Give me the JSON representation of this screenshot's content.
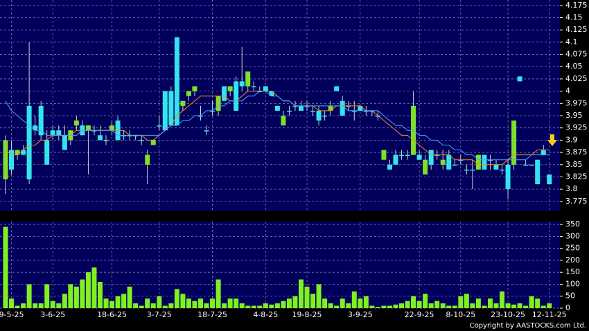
{
  "chart_data": [
    {
      "type": "candlestick",
      "categories": [
        null,
        "9-5-25",
        null,
        null,
        null,
        null,
        null,
        null,
        "3-6-25",
        null,
        null,
        null,
        null,
        null,
        null,
        null,
        null,
        null,
        "18-6-25",
        null,
        null,
        null,
        null,
        null,
        null,
        null,
        "3-7-25",
        null,
        null,
        null,
        null,
        null,
        null,
        null,
        null,
        "18-7-25",
        null,
        null,
        null,
        null,
        null,
        null,
        null,
        null,
        "4-8-25",
        null,
        null,
        null,
        null,
        null,
        null,
        "19-8-25",
        null,
        null,
        null,
        null,
        null,
        null,
        null,
        null,
        "3-9-25",
        null,
        null,
        null,
        null,
        null,
        null,
        null,
        null,
        null,
        "22-9-25",
        null,
        null,
        null,
        null,
        null,
        null,
        "8-10-25",
        null,
        null,
        null,
        null,
        null,
        null,
        null,
        "23-10-25",
        null,
        null,
        null,
        null,
        null,
        null,
        "12-11-25"
      ],
      "open": [
        3.82,
        3.88,
        3.87,
        3.88,
        3.97,
        3.93,
        3.97,
        3.9,
        3.92,
        3.92,
        3.91,
        3.9,
        3.93,
        3.93,
        3.92,
        3.92,
        3.91,
        3.9,
        3.92,
        3.94,
        3.91,
        3.91,
        3.91,
        3.9,
        3.85,
        3.89,
        3.93,
        4.0,
        4.0,
        4.11,
        3.97,
        3.99,
        4.0,
        3.95,
        3.92,
        3.96,
        3.96,
        4.01,
        4.0,
        4.02,
        4.02,
        4.01,
        4.01,
        4.0,
        4.01,
        4.0,
        3.97,
        3.93,
        3.96,
        3.97,
        3.97,
        3.97,
        3.96,
        3.96,
        3.95,
        3.96,
        4.01,
        3.98,
        3.97,
        3.96,
        3.97,
        3.96,
        3.96,
        3.95,
        3.86,
        3.85,
        3.87,
        3.87,
        3.87,
        3.87,
        3.87,
        3.83,
        3.88,
        3.87,
        3.85,
        3.87,
        3.85,
        3.86,
        3.84,
        3.84,
        3.84,
        3.87,
        3.86,
        3.85,
        3.84,
        3.85,
        3.85,
        4.03,
        3.85,
        3.85,
        3.86,
        3.88,
        3.83
      ],
      "high": [
        3.91,
        3.9,
        3.88,
        3.89,
        4.1,
        3.95,
        3.98,
        3.92,
        3.93,
        3.93,
        3.93,
        3.92,
        3.95,
        3.94,
        3.93,
        3.93,
        3.93,
        3.91,
        3.94,
        3.95,
        3.92,
        3.92,
        3.91,
        3.91,
        3.88,
        3.9,
        3.95,
        4.0,
        4.01,
        4.11,
        3.98,
        4.0,
        4.01,
        3.97,
        3.93,
        3.98,
        3.99,
        4.01,
        4.01,
        4.03,
        4.09,
        4.04,
        4.02,
        4.01,
        4.01,
        4.0,
        3.97,
        3.96,
        3.97,
        3.98,
        3.98,
        3.98,
        3.97,
        3.97,
        3.96,
        3.98,
        4.01,
        3.99,
        3.98,
        3.98,
        3.97,
        3.97,
        3.96,
        3.96,
        3.88,
        3.86,
        3.88,
        3.88,
        3.88,
        4.0,
        3.88,
        3.87,
        3.88,
        3.88,
        3.88,
        3.88,
        3.86,
        3.87,
        3.85,
        3.86,
        3.87,
        3.87,
        3.87,
        3.86,
        3.85,
        3.86,
        3.94,
        4.03,
        3.86,
        3.85,
        3.86,
        3.89,
        3.83
      ],
      "low": [
        3.79,
        3.83,
        3.86,
        3.87,
        3.81,
        3.91,
        3.9,
        3.85,
        3.9,
        3.9,
        3.88,
        3.89,
        3.92,
        3.91,
        3.83,
        3.91,
        3.9,
        3.89,
        3.91,
        3.9,
        3.9,
        3.9,
        3.9,
        3.89,
        3.81,
        3.89,
        3.92,
        3.92,
        3.93,
        3.93,
        3.96,
        3.98,
        3.99,
        3.94,
        3.91,
        3.95,
        3.95,
        3.98,
        3.99,
        3.96,
        4.0,
        4.0,
        4.0,
        4.0,
        4.0,
        3.99,
        3.96,
        3.93,
        3.95,
        3.96,
        3.96,
        3.96,
        3.95,
        3.93,
        3.94,
        3.95,
        4.0,
        3.95,
        3.96,
        3.94,
        3.96,
        3.95,
        3.95,
        3.94,
        3.86,
        3.84,
        3.85,
        3.86,
        3.86,
        3.87,
        3.86,
        3.83,
        3.84,
        3.86,
        3.84,
        3.84,
        3.85,
        3.85,
        3.83,
        3.8,
        3.84,
        3.84,
        3.84,
        3.84,
        3.83,
        3.78,
        3.84,
        4.02,
        3.85,
        3.85,
        3.81,
        3.87,
        3.81
      ],
      "close": [
        3.9,
        3.84,
        3.88,
        3.87,
        3.82,
        3.92,
        3.91,
        3.85,
        3.91,
        3.91,
        3.88,
        3.92,
        3.94,
        3.91,
        3.93,
        3.92,
        3.9,
        3.9,
        3.93,
        3.9,
        3.91,
        3.91,
        3.91,
        3.9,
        3.87,
        3.9,
        3.93,
        3.92,
        3.93,
        3.93,
        3.98,
        4.0,
        4.01,
        3.95,
        3.92,
        3.96,
        3.99,
        3.98,
        4.01,
        3.96,
        4.01,
        4.04,
        4.01,
        4.0,
        4.0,
        3.99,
        3.96,
        3.95,
        3.96,
        3.97,
        3.96,
        3.97,
        3.96,
        3.94,
        3.95,
        3.97,
        4.0,
        3.95,
        3.97,
        3.96,
        3.96,
        3.96,
        3.96,
        3.95,
        3.88,
        3.84,
        3.85,
        3.87,
        3.87,
        3.97,
        3.86,
        3.86,
        3.85,
        3.87,
        3.86,
        3.84,
        3.85,
        3.86,
        3.84,
        3.84,
        3.87,
        3.84,
        3.86,
        3.84,
        3.84,
        3.8,
        3.94,
        4.02,
        3.85,
        3.85,
        3.81,
        3.87,
        3.81
      ],
      "up_color": "#7fe02a",
      "down_color": "#33e4ee",
      "series": [
        {
          "color": "#ff8a1c",
          "values": [
            3.88,
            3.87,
            3.87,
            3.88,
            3.89,
            3.89,
            3.9,
            3.9,
            3.91,
            3.91,
            3.91,
            3.91,
            3.92,
            3.92,
            3.92,
            3.92,
            3.92,
            3.92,
            3.92,
            3.92,
            3.92,
            3.91,
            3.91,
            3.91,
            3.9,
            3.9,
            3.91,
            3.92,
            3.93,
            3.95,
            3.96,
            3.97,
            3.98,
            3.99,
            3.99,
            3.99,
            3.99,
            3.99,
            3.98,
            3.98,
            3.99,
            4.0,
            4.0,
            4.0,
            4.0,
            4.0,
            3.99,
            3.98,
            3.98,
            3.97,
            3.97,
            3.97,
            3.97,
            3.96,
            3.96,
            3.96,
            3.97,
            3.97,
            3.97,
            3.97,
            3.97,
            3.96,
            3.96,
            3.95,
            3.94,
            3.93,
            3.92,
            3.91,
            3.91,
            3.9,
            3.89,
            3.88,
            3.87,
            3.87,
            3.87,
            3.87,
            3.86,
            3.86,
            3.86,
            3.86,
            3.85,
            3.85,
            3.85,
            3.85,
            3.85,
            3.86,
            3.87,
            3.87,
            3.87,
            3.87,
            3.88,
            3.88,
            3.88
          ]
        },
        {
          "color": "#4aa6ff",
          "values": [
            3.98,
            3.96,
            3.95,
            3.94,
            3.93,
            3.92,
            3.92,
            3.91,
            3.91,
            3.91,
            3.91,
            3.91,
            3.91,
            3.92,
            3.92,
            3.92,
            3.92,
            3.92,
            3.92,
            3.91,
            3.91,
            3.91,
            3.91,
            3.91,
            3.91,
            3.91,
            3.91,
            3.92,
            3.93,
            3.93,
            3.94,
            3.94,
            3.95,
            3.95,
            3.96,
            3.96,
            3.97,
            3.97,
            3.98,
            3.98,
            3.98,
            3.99,
            3.99,
            4.0,
            4.0,
            3.99,
            3.99,
            3.98,
            3.98,
            3.97,
            3.97,
            3.97,
            3.97,
            3.97,
            3.97,
            3.97,
            3.97,
            3.97,
            3.96,
            3.96,
            3.96,
            3.96,
            3.96,
            3.96,
            3.95,
            3.94,
            3.93,
            3.93,
            3.92,
            3.92,
            3.91,
            3.91,
            3.9,
            3.9,
            3.89,
            3.89,
            3.88,
            3.88,
            3.87,
            3.87,
            3.86,
            3.86,
            3.86,
            3.86,
            3.86,
            3.86,
            3.86,
            3.86,
            3.86,
            3.87,
            3.87,
            3.87,
            3.87
          ]
        }
      ],
      "ylim": [
        3.755,
        4.186
      ],
      "yticks": [
        3.775,
        3.8,
        3.825,
        3.85,
        3.875,
        3.9,
        3.925,
        3.95,
        3.975,
        4,
        4.025,
        4.05,
        4.075,
        4.1,
        4.125,
        4.15,
        4.175
      ],
      "grid": true
    },
    {
      "type": "bar",
      "color": "#80f020",
      "values": [
        340,
        40,
        10,
        20,
        100,
        20,
        20,
        100,
        30,
        20,
        60,
        100,
        90,
        120,
        150,
        170,
        110,
        40,
        30,
        50,
        60,
        90,
        20,
        10,
        40,
        20,
        50,
        10,
        20,
        80,
        60,
        40,
        30,
        40,
        20,
        40,
        120,
        20,
        40,
        40,
        20,
        10,
        10,
        10,
        20,
        15,
        20,
        30,
        40,
        50,
        120,
        90,
        60,
        100,
        40,
        20,
        10,
        40,
        20,
        70,
        40,
        50,
        10,
        5,
        10,
        10,
        15,
        20,
        30,
        50,
        30,
        60,
        20,
        30,
        20,
        10,
        10,
        50,
        60,
        20,
        40,
        10,
        40,
        20,
        70,
        20,
        15,
        20,
        10,
        50,
        40,
        10,
        20
      ],
      "ylim": [
        0,
        362
      ],
      "yticks": [
        0,
        50,
        100,
        150,
        200,
        250,
        300,
        350
      ],
      "grid": true,
      "note": "Copyright by AASTOCKS.com Ltd."
    }
  ]
}
